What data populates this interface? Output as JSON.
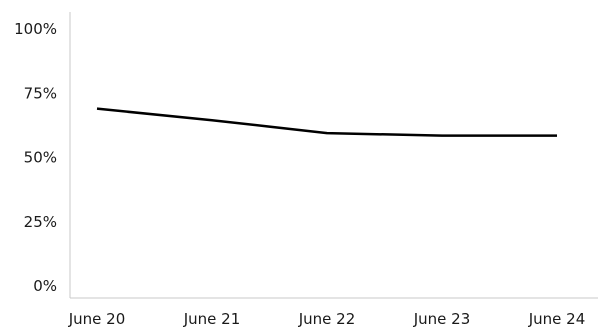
{
  "chart_data": {
    "type": "line",
    "categories": [
      "June 20",
      "June 21",
      "June 22",
      "June 23",
      "June 24"
    ],
    "series": [
      {
        "values": [
          69,
          64.5,
          59.5,
          58.5,
          58.5
        ]
      }
    ],
    "ylim": [
      0,
      100
    ],
    "yticks": [
      0,
      25,
      50,
      75,
      100
    ],
    "ytick_labels": [
      "0%",
      "25%",
      "50%",
      "75%",
      "100%"
    ],
    "grid": false,
    "legend": "none",
    "colors": {
      "line": "#000000",
      "axis": "#c8c8c8"
    }
  }
}
